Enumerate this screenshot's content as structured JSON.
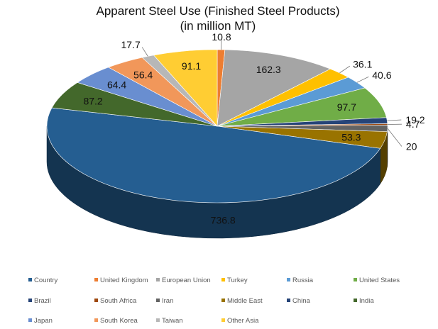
{
  "chart_data": {
    "type": "pie",
    "style": "3d",
    "title_line1": "Apparent Steel Use (Finished Steel Products)",
    "title_line2": "(in million MT)",
    "legend_position": "bottom",
    "slices": [
      {
        "label": "United Kingdom",
        "value": 10.8,
        "display": "10.8",
        "color": "#ED7D31"
      },
      {
        "label": "European Union",
        "value": 162.3,
        "display": "162.3",
        "color": "#A5A5A5"
      },
      {
        "label": "Turkey",
        "value": 36.1,
        "display": "36.1",
        "color": "#FFC000"
      },
      {
        "label": "Russia",
        "value": 40.6,
        "display": "40.6",
        "color": "#5B9BD5"
      },
      {
        "label": "United States",
        "value": 97.7,
        "display": "97.7",
        "color": "#70AD47"
      },
      {
        "label": "Brazil",
        "value": 19.2,
        "display": "19.2",
        "color": "#264478"
      },
      {
        "label": "South Africa",
        "value": 4.7,
        "display": "4.7",
        "color": "#9E480E"
      },
      {
        "label": "Iran",
        "value": 20,
        "display": "20",
        "color": "#636363"
      },
      {
        "label": "Middle East",
        "value": 53.3,
        "display": "53.3",
        "color": "#997300"
      },
      {
        "label": "China",
        "value": 736.8,
        "display": "736.8",
        "color": "#255E91"
      },
      {
        "label": "India",
        "value": 87.2,
        "display": "87.2",
        "color": "#43682B"
      },
      {
        "label": "Japan",
        "value": 64.4,
        "display": "64.4",
        "color": "#698ED0"
      },
      {
        "label": "South Korea",
        "value": 56.4,
        "display": "56.4",
        "color": "#F1975A"
      },
      {
        "label": "Taiwan",
        "value": 17.7,
        "display": "17.7",
        "color": "#B7B7B7"
      },
      {
        "label": "Other Asia",
        "value": 91.1,
        "display": "91.1",
        "color": "#FFCD33"
      }
    ],
    "legend": [
      {
        "label": "Country",
        "color": "#255E91"
      },
      {
        "label": "United Kingdom",
        "color": "#ED7D31"
      },
      {
        "label": "European Union",
        "color": "#A5A5A5"
      },
      {
        "label": "Turkey",
        "color": "#FFC000"
      },
      {
        "label": "Russia",
        "color": "#5B9BD5"
      },
      {
        "label": "United States",
        "color": "#70AD47"
      },
      {
        "label": "Brazil",
        "color": "#264478"
      },
      {
        "label": "South Africa",
        "color": "#9E480E"
      },
      {
        "label": "Iran",
        "color": "#636363"
      },
      {
        "label": "Middle East",
        "color": "#997300"
      },
      {
        "label": "China",
        "color": "#264478"
      },
      {
        "label": "India",
        "color": "#43682B"
      },
      {
        "label": "Japan",
        "color": "#698ED0"
      },
      {
        "label": "South Korea",
        "color": "#F1975A"
      },
      {
        "label": "Taiwan",
        "color": "#B7B7B7"
      },
      {
        "label": "Other Asia",
        "color": "#FFCD33"
      }
    ]
  }
}
